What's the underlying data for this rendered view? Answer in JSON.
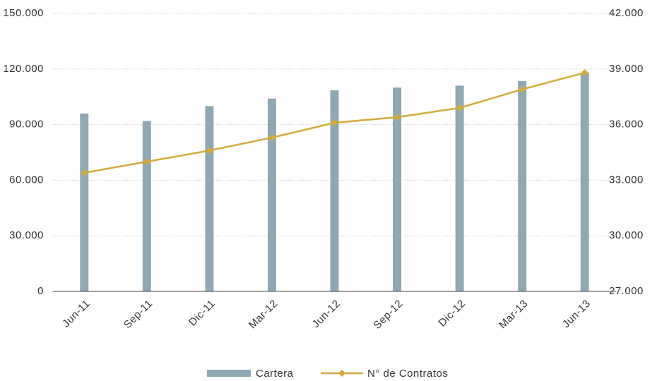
{
  "chart_data": {
    "type": "bar_line",
    "categories": [
      "Jun-11",
      "Sep-11",
      "Dic-11",
      "Mar-12",
      "Jun-12",
      "Sep-12",
      "Dic-12",
      "Mar-13",
      "Jun-13"
    ],
    "series": [
      {
        "name": "Cartera",
        "type": "bar",
        "color": "#8fa9b4",
        "values": [
          96000,
          92000,
          100000,
          104000,
          108500,
          110000,
          111000,
          113500,
          118000
        ]
      },
      {
        "name": "N° de Contratos",
        "type": "line",
        "axis": "y2",
        "color": "#d4aa3c",
        "values": [
          33400,
          34000,
          34600,
          35300,
          36100,
          36400,
          36900,
          37900,
          38800
        ]
      }
    ],
    "ylim": [
      0,
      150000
    ],
    "yticks": [
      {
        "value": 0,
        "label": "0"
      },
      {
        "value": 30000,
        "label": "30.000"
      },
      {
        "value": 60000,
        "label": "60.000"
      },
      {
        "value": 90000,
        "label": "90.000"
      },
      {
        "value": 120000,
        "label": "120.000"
      },
      {
        "value": 150000,
        "label": "150.000"
      }
    ],
    "y2lim": [
      27000,
      42000
    ],
    "y2ticks": [
      {
        "value": 27000,
        "label": "27.000"
      },
      {
        "value": 30000,
        "label": "30.000"
      },
      {
        "value": 33000,
        "label": "33.000"
      },
      {
        "value": 36000,
        "label": "36.000"
      },
      {
        "value": 39000,
        "label": "39.000"
      },
      {
        "value": 42000,
        "label": "42.000"
      }
    ],
    "grid": true,
    "legend": "bottom"
  }
}
